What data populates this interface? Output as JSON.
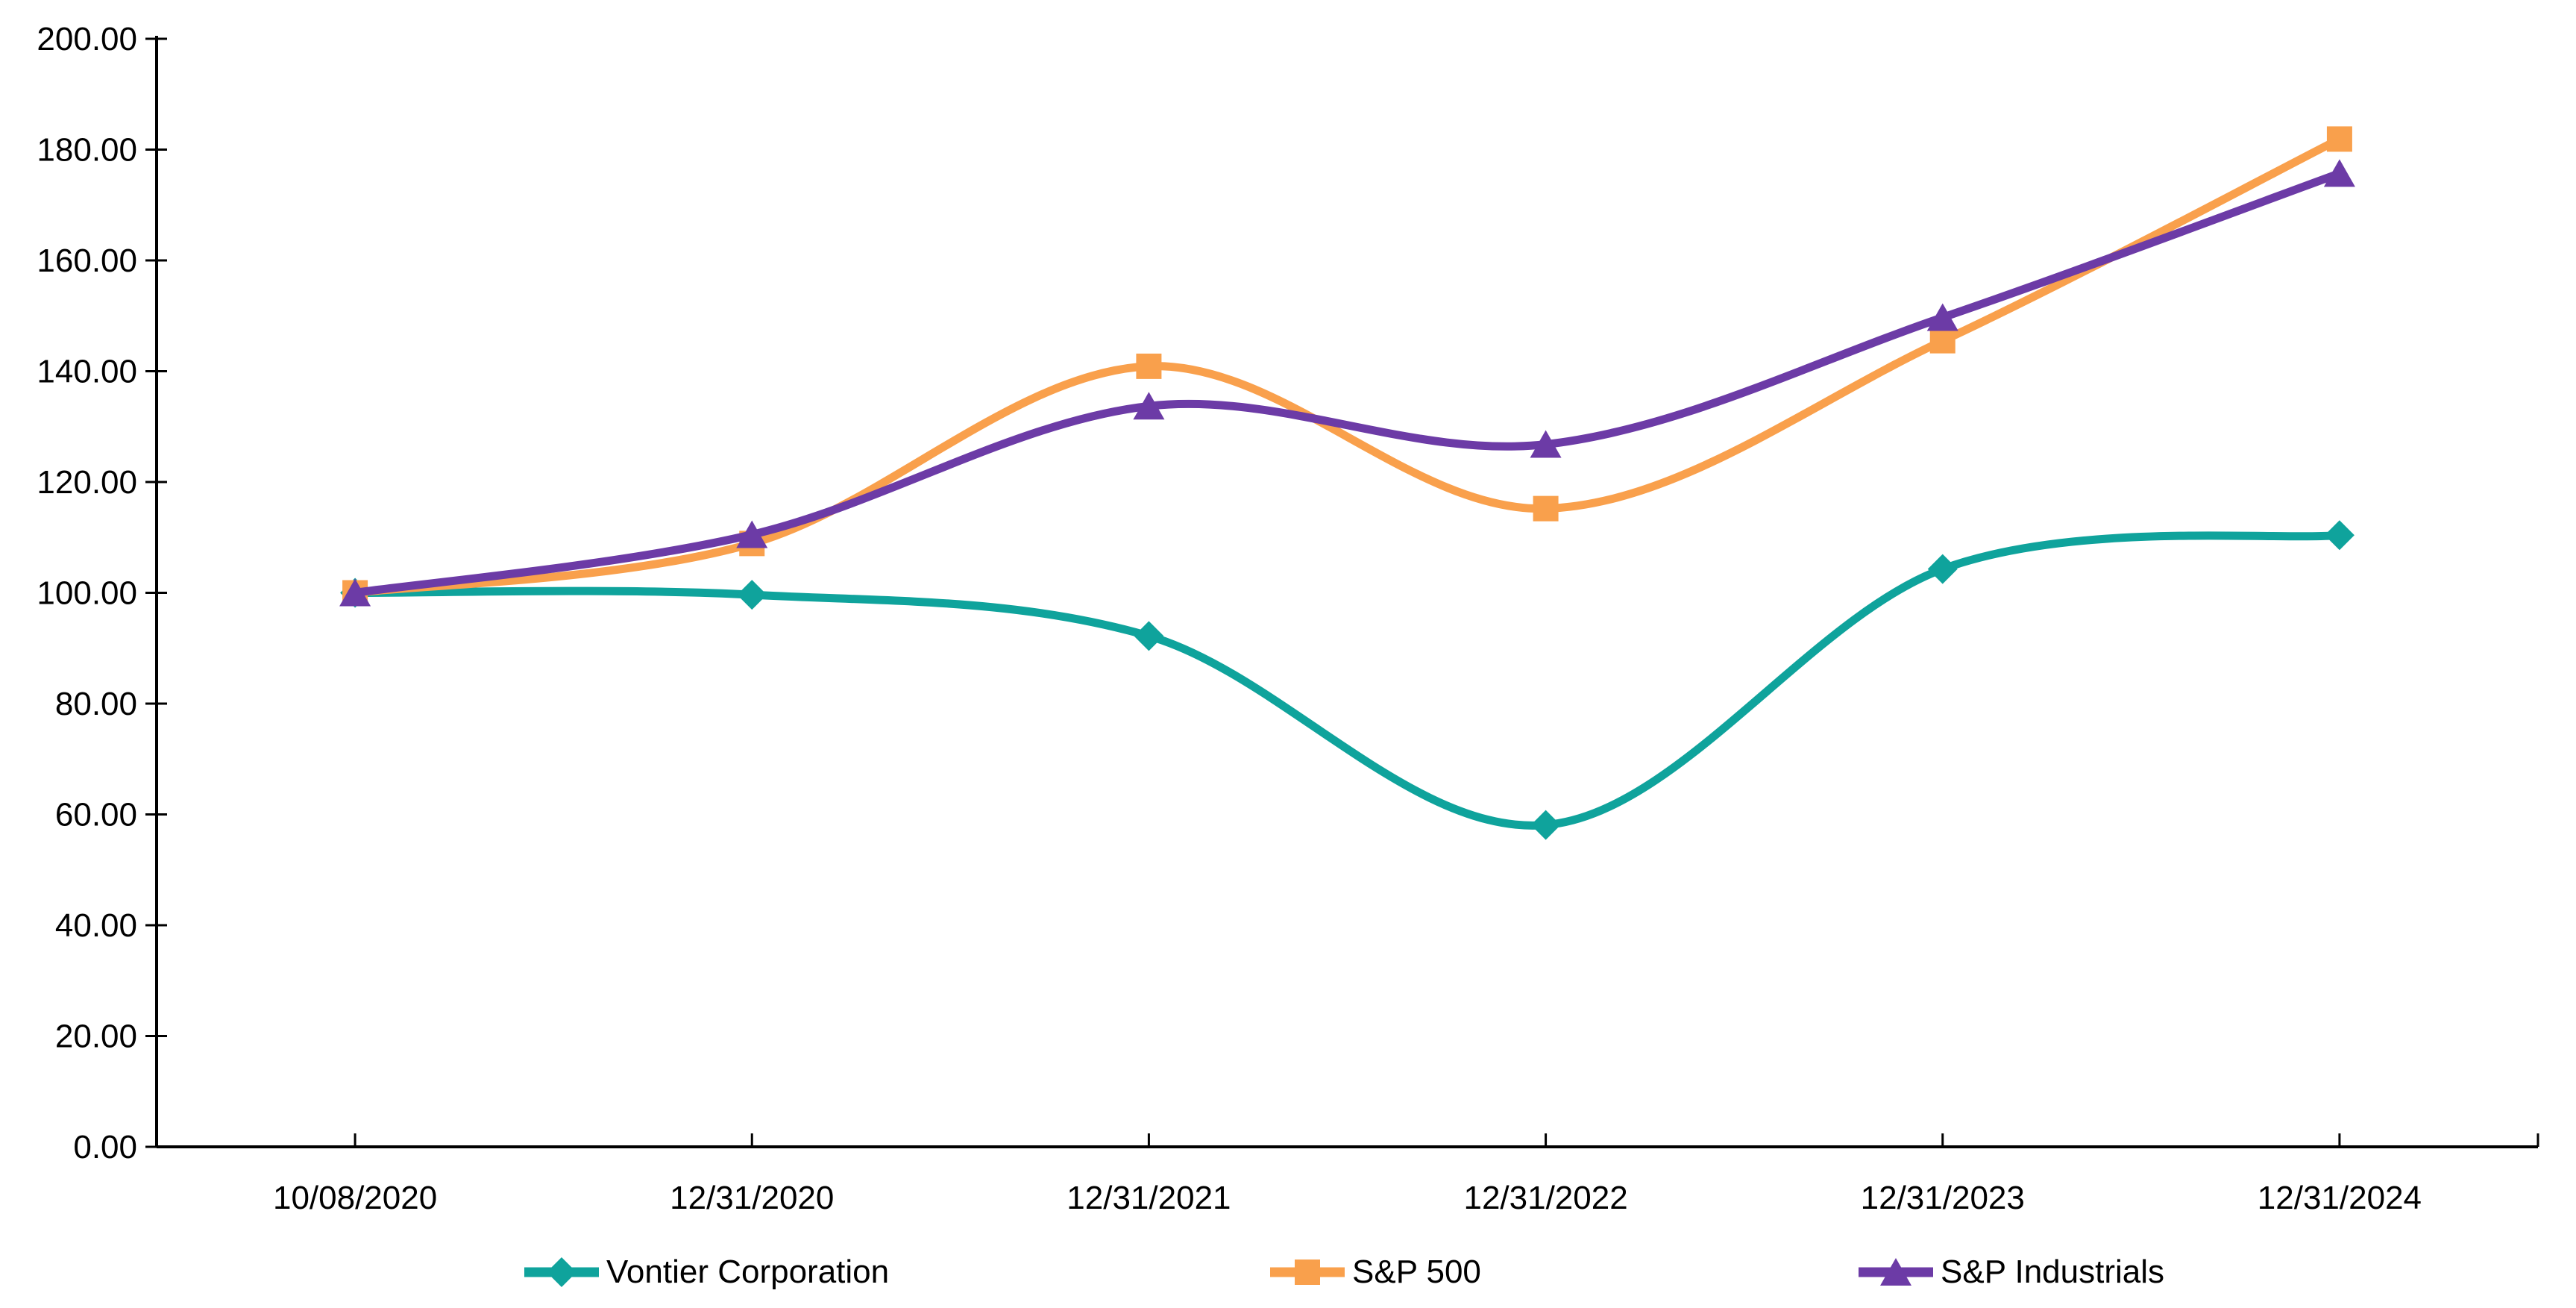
{
  "chart_data": {
    "type": "line",
    "title": "",
    "xlabel": "",
    "ylabel": "",
    "grid": false,
    "smoothed_lines": true,
    "legend_position": "bottom",
    "background_color": "#FFFFFF",
    "axis_color": "#000000",
    "text_color": "#000000",
    "x_categories": [
      "10/08/2020",
      "12/31/2020",
      "12/31/2021",
      "12/31/2022",
      "12/31/2023",
      "12/31/2024"
    ],
    "y_axis": {
      "min": 0,
      "max": 200,
      "tick_step": 20,
      "tick_labels": [
        "0.00",
        "20.00",
        "40.00",
        "60.00",
        "80.00",
        "100.00",
        "120.00",
        "140.00",
        "160.00",
        "180.00",
        "200.00"
      ]
    },
    "series": [
      {
        "name": "Vontier Corporation",
        "color": "#0FA39C",
        "marker": "diamond",
        "values": [
          100.0,
          99.65,
          92.2,
          58.1,
          104.3,
          110.4
        ]
      },
      {
        "name": "S&P 500",
        "color": "#F9A04C",
        "marker": "square",
        "values": [
          100.0,
          108.9,
          140.9,
          115.2,
          145.5,
          181.9
        ]
      },
      {
        "name": "S&P Industrials",
        "color": "#6C3BA6",
        "marker": "triangle",
        "values": [
          100.0,
          110.5,
          133.7,
          126.8,
          149.7,
          175.7
        ]
      }
    ]
  }
}
